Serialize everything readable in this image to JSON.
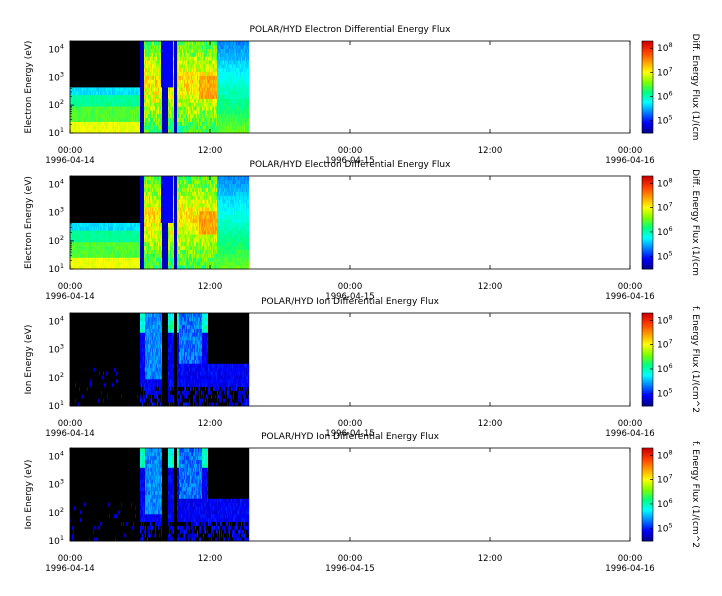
{
  "figure": {
    "time_ticks": [
      "00:00",
      "12:00",
      "00:00",
      "12:00",
      "00:00"
    ],
    "date_ticks": [
      "1996-04-14",
      "",
      "1996-04-15",
      "",
      "1996-04-16"
    ],
    "time_range_hours": [
      0,
      48
    ],
    "data_extent_hours": [
      0,
      15.3
    ]
  },
  "chart_data": [
    {
      "type": "heatmap",
      "title": "POLAR/HYD  Electron Differential Energy Flux",
      "ylabel": "Electron Energy (eV)",
      "colorbar_label": "Diff. Energy Flux (1/(cm",
      "yscale": "log",
      "ylim": [
        10,
        20000
      ],
      "y_ticks": [
        "10",
        "10",
        "10",
        "10"
      ],
      "y_tick_exponents": [
        "1",
        "2",
        "3",
        "4"
      ],
      "colorbar_ticks": [
        "10",
        "10",
        "10",
        "10"
      ],
      "colorbar_tick_exponents": [
        "5",
        "6",
        "7",
        "8"
      ],
      "colorbar_range": [
        30000,
        200000000
      ],
      "x_unit": "hours since 1996-04-14 00:00",
      "x_tick_values": [
        0,
        12,
        24,
        36,
        48
      ],
      "y_tick_values": [
        10,
        100,
        1000,
        10000
      ],
      "colorbar_tick_values": [
        100000,
        1000000,
        10000000,
        100000000
      ]
    },
    {
      "type": "heatmap",
      "title": "POLAR/HYD  Electron Differential Energy Flux",
      "ylabel": "Electron Energy (eV)",
      "colorbar_label": "Diff. Energy Flux (1/(cm",
      "yscale": "log",
      "ylim": [
        10,
        20000
      ],
      "y_ticks": [
        "10",
        "10",
        "10",
        "10"
      ],
      "y_tick_exponents": [
        "1",
        "2",
        "3",
        "4"
      ],
      "colorbar_ticks": [
        "10",
        "10",
        "10",
        "10"
      ],
      "colorbar_tick_exponents": [
        "5",
        "6",
        "7",
        "8"
      ],
      "colorbar_range": [
        30000,
        200000000
      ],
      "x_unit": "hours since 1996-04-14 00:00",
      "x_tick_values": [
        0,
        12,
        24,
        36,
        48
      ],
      "y_tick_values": [
        10,
        100,
        1000,
        10000
      ],
      "colorbar_tick_values": [
        100000,
        1000000,
        10000000,
        100000000
      ]
    },
    {
      "type": "heatmap",
      "title": "POLAR/HYD  Ion Differential Energy Flux",
      "ylabel": "Ion Energy (eV)",
      "colorbar_label": "f. Energy Flux (1/(cm^2",
      "yscale": "log",
      "ylim": [
        10,
        20000
      ],
      "y_ticks": [
        "10",
        "10",
        "10",
        "10"
      ],
      "y_tick_exponents": [
        "1",
        "2",
        "3",
        "4"
      ],
      "colorbar_ticks": [
        "10",
        "10",
        "10",
        "10"
      ],
      "colorbar_tick_exponents": [
        "5",
        "6",
        "7",
        "8"
      ],
      "colorbar_range": [
        30000,
        200000000
      ],
      "x_unit": "hours since 1996-04-14 00:00",
      "x_tick_values": [
        0,
        12,
        24,
        36,
        48
      ],
      "y_tick_values": [
        10,
        100,
        1000,
        10000
      ],
      "colorbar_tick_values": [
        100000,
        1000000,
        10000000,
        100000000
      ]
    },
    {
      "type": "heatmap",
      "title": "POLAR/HYD  Ion Differential Energy Flux",
      "ylabel": "Ion Energy (eV)",
      "colorbar_label": "f. Energy Flux (1/(cm^2",
      "yscale": "log",
      "ylim": [
        10,
        20000
      ],
      "y_ticks": [
        "10",
        "10",
        "10",
        "10"
      ],
      "y_tick_exponents": [
        "1",
        "2",
        "3",
        "4"
      ],
      "colorbar_ticks": [
        "10",
        "10",
        "10",
        "10"
      ],
      "colorbar_tick_exponents": [
        "5",
        "6",
        "7",
        "8"
      ],
      "colorbar_range": [
        30000,
        200000000
      ],
      "x_unit": "hours since 1996-04-14 00:00",
      "x_tick_values": [
        0,
        12,
        24,
        36,
        48
      ],
      "y_tick_values": [
        10,
        100,
        1000,
        10000
      ],
      "colorbar_tick_values": [
        100000,
        1000000,
        10000000,
        100000000
      ]
    }
  ],
  "colormap": [
    "#00008c",
    "#0000ff",
    "#0080ff",
    "#00ffff",
    "#00ff80",
    "#80ff00",
    "#ffff00",
    "#ffa000",
    "#ff4000",
    "#d00000"
  ]
}
